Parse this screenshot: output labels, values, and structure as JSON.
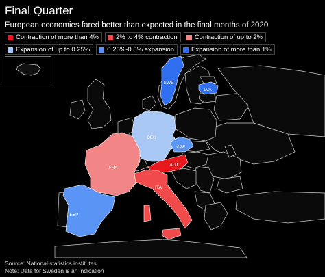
{
  "title": "Final Quarter",
  "subtitle": "European economies fared better than expected in the final months of 2020",
  "legend": [
    {
      "label": "Contraction of more than 4%",
      "color": "#e8191e"
    },
    {
      "label": "2% to 4% contraction",
      "color": "#f04a4a"
    },
    {
      "label": "Contraction of up to 2%",
      "color": "#f28585"
    },
    {
      "label": "Expansion of up to 0.25%",
      "color": "#a9c7f5"
    },
    {
      "label": "0.25%-0.5% expansion",
      "color": "#5a95f5"
    },
    {
      "label": "Expansion of more than 1%",
      "color": "#2f6ff0"
    }
  ],
  "countries": {
    "swe": {
      "code": "SWE",
      "color": "#2f6ff0"
    },
    "lva": {
      "code": "LVA",
      "color": "#2f6ff0"
    },
    "deu": {
      "code": "DEU",
      "color": "#a9c7f5"
    },
    "cze": {
      "code": "CZE",
      "color": "#5a95f5"
    },
    "aut": {
      "code": "AUT",
      "color": "#e8191e"
    },
    "fra": {
      "code": "FRA",
      "color": "#f28585"
    },
    "ita": {
      "code": "ITA",
      "color": "#f04a4a"
    },
    "esp": {
      "code": "ESP",
      "color": "#5a95f5"
    }
  },
  "footer": {
    "source": "Source: National statistics institutes",
    "note": "Note: Data for Sweden is an indication"
  }
}
